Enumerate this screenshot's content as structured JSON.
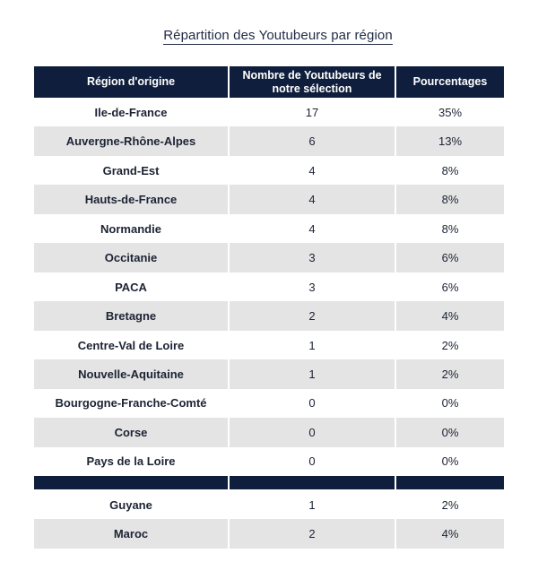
{
  "title": "Répartition des Youtubeurs par région",
  "table": {
    "headers": [
      "Région d'origine",
      "Nombre de Youtubeurs de notre sélection",
      "Pourcentages"
    ],
    "rows": [
      {
        "region": "Ile-de-France",
        "count": "17",
        "pct": "35%"
      },
      {
        "region": "Auvergne-Rhône-Alpes",
        "count": "6",
        "pct": "13%"
      },
      {
        "region": "Grand-Est",
        "count": "4",
        "pct": "8%"
      },
      {
        "region": "Hauts-de-France",
        "count": "4",
        "pct": "8%"
      },
      {
        "region": "Normandie",
        "count": "4",
        "pct": "8%"
      },
      {
        "region": "Occitanie",
        "count": "3",
        "pct": "6%"
      },
      {
        "region": "PACA",
        "count": "3",
        "pct": "6%"
      },
      {
        "region": "Bretagne",
        "count": "2",
        "pct": "4%"
      },
      {
        "region": "Centre-Val de Loire",
        "count": "1",
        "pct": "2%"
      },
      {
        "region": "Nouvelle-Aquitaine",
        "count": "1",
        "pct": "2%"
      },
      {
        "region": "Bourgogne-Franche-Comté",
        "count": "0",
        "pct": "0%"
      },
      {
        "region": "Corse",
        "count": "0",
        "pct": "0%"
      },
      {
        "region": "Pays de la Loire",
        "count": "0",
        "pct": "0%"
      }
    ],
    "extra_rows": [
      {
        "region": "Guyane",
        "count": "1",
        "pct": "2%"
      },
      {
        "region": "Maroc",
        "count": "2",
        "pct": "4%"
      }
    ]
  },
  "colors": {
    "header_bg": "#0f1e3c",
    "stripe_bg": "#e4e4e4",
    "text": "#1c2333"
  }
}
